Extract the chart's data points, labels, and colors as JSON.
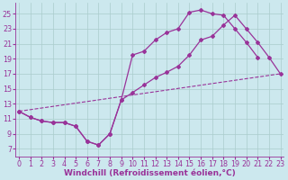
{
  "bg_color": "#cce8ee",
  "line_color": "#993399",
  "grid_color": "#aacccc",
  "xlabel": "Windchill (Refroidissement éolien,°C)",
  "xlabel_fontsize": 6.5,
  "tick_fontsize": 5.8,
  "yticks": [
    7,
    9,
    11,
    13,
    15,
    17,
    19,
    21,
    23,
    25
  ],
  "xticks": [
    0,
    1,
    2,
    3,
    4,
    5,
    6,
    7,
    8,
    9,
    10,
    11,
    12,
    13,
    14,
    15,
    16,
    17,
    18,
    19,
    20,
    21,
    22,
    23
  ],
  "xlim": [
    -0.3,
    23.3
  ],
  "ylim": [
    6.0,
    26.5
  ],
  "curve1_x": [
    0,
    1,
    2,
    3,
    4,
    5,
    6,
    7,
    8,
    9,
    10,
    11,
    12,
    13,
    14,
    15,
    16,
    17,
    18,
    19,
    20,
    21,
    22,
    23
  ],
  "curve1_y": [
    12.0,
    11.2,
    10.7,
    10.5,
    10.5,
    10.0,
    8.0,
    7.5,
    9.0,
    13.5,
    19.5,
    20.0,
    21.5,
    22.5,
    23.0,
    25.2,
    25.5,
    25.0,
    24.8,
    23.0,
    21.2,
    19.2,
    null,
    null
  ],
  "curve2_x": [
    0,
    1,
    2,
    3,
    4,
    5,
    6,
    7,
    8,
    9,
    10,
    11,
    12,
    13,
    14,
    15,
    16,
    17,
    18,
    19,
    20,
    21,
    22,
    23
  ],
  "curve2_y": [
    12.0,
    11.2,
    10.7,
    10.5,
    10.5,
    10.0,
    8.0,
    7.5,
    9.0,
    13.5,
    14.5,
    15.5,
    16.5,
    17.2,
    18.0,
    19.5,
    21.5,
    22.0,
    23.5,
    24.8,
    23.0,
    21.2,
    19.2,
    17.0
  ],
  "line3_x": [
    0,
    23
  ],
  "line3_y": [
    12.0,
    17.0
  ]
}
